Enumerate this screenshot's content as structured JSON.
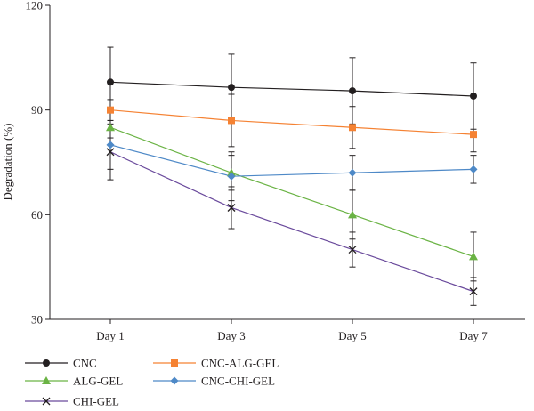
{
  "chart_data": {
    "type": "line",
    "title": "",
    "xlabel": "",
    "ylabel": "Degradation (%)",
    "ylim": [
      30,
      120
    ],
    "yticks": [
      30,
      60,
      90,
      120
    ],
    "categories": [
      "Day 1",
      "Day 3",
      "Day 5",
      "Day 7"
    ],
    "grid": false,
    "legend_position": "bottom",
    "series": [
      {
        "name": "CNC",
        "color": "#231f20",
        "marker": "circle",
        "values": [
          98,
          96.5,
          95.5,
          94
        ],
        "errors": [
          10,
          9.5,
          9.5,
          9.5
        ]
      },
      {
        "name": "CNC-ALG-GEL",
        "color": "#f58233",
        "marker": "square",
        "values": [
          90,
          87,
          85,
          83
        ],
        "errors": [
          3,
          7.5,
          6,
          5
        ]
      },
      {
        "name": "ALG-GEL",
        "color": "#6ab344",
        "marker": "triangle",
        "values": [
          85,
          72,
          60,
          48
        ],
        "errors": [
          3,
          5,
          7,
          7
        ]
      },
      {
        "name": "CNC-CHI-GEL",
        "color": "#4e89c7",
        "marker": "diamond",
        "values": [
          80,
          71,
          72,
          73
        ],
        "errors": [
          7,
          7,
          5,
          4
        ]
      },
      {
        "name": "CHI-GEL",
        "color": "#6a4a9c",
        "marker": "x",
        "values": [
          78,
          62,
          50,
          38
        ],
        "errors": [
          8,
          6,
          5,
          4
        ]
      }
    ]
  }
}
